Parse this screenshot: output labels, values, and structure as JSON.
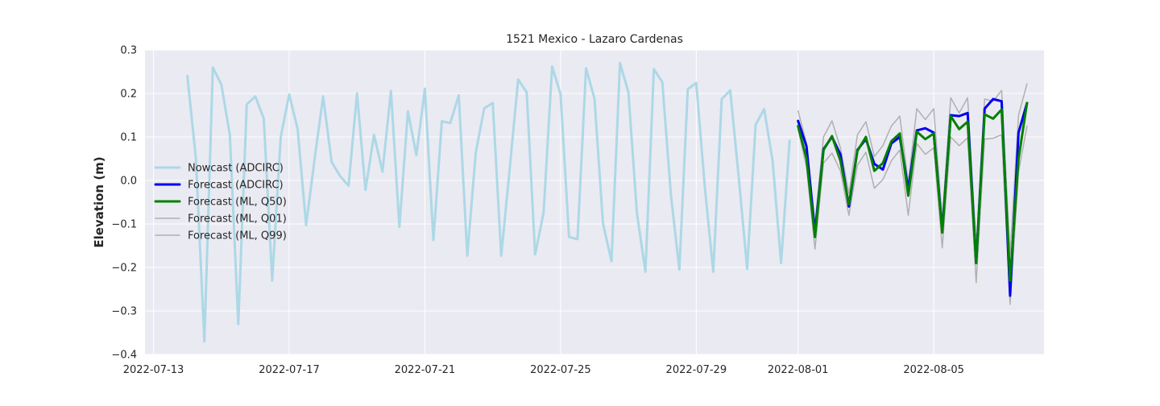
{
  "chart_data": {
    "type": "line",
    "title": "1521 Mexico - Lazaro Cardenas",
    "xlabel": "",
    "ylabel": "Elevation (m)",
    "xlim": [
      "2022-07-12T18:00",
      "2022-08-08T06:00"
    ],
    "ylim": [
      -0.4,
      0.3
    ],
    "x_ticks": [
      "2022-07-13",
      "2022-07-17",
      "2022-07-21",
      "2022-07-25",
      "2022-07-29",
      "2022-08-01",
      "2022-08-05"
    ],
    "y_ticks": [
      -0.4,
      -0.3,
      -0.2,
      -0.1,
      0.0,
      0.1,
      0.2,
      0.3
    ],
    "y_tick_labels": [
      "−0.4",
      "−0.3",
      "−0.2",
      "−0.1",
      "0.0",
      "0.1",
      "0.2",
      "0.3"
    ],
    "grid": true,
    "legend_position": "center-left",
    "series": [
      {
        "name": "Nowcast (ADCIRC)",
        "color": "#add8e6",
        "width": 3,
        "x": [
          "2022-07-14T00:00",
          "2022-07-14T06:00",
          "2022-07-14T12:00",
          "2022-07-14T18:00",
          "2022-07-15T00:00",
          "2022-07-15T06:00",
          "2022-07-15T12:00",
          "2022-07-15T18:00",
          "2022-07-16T00:00",
          "2022-07-16T06:00",
          "2022-07-16T12:00",
          "2022-07-16T18:00",
          "2022-07-17T00:00",
          "2022-07-17T06:00",
          "2022-07-17T12:00",
          "2022-07-17T18:00",
          "2022-07-18T00:00",
          "2022-07-18T06:00",
          "2022-07-18T12:00",
          "2022-07-18T18:00",
          "2022-07-19T00:00",
          "2022-07-19T06:00",
          "2022-07-19T12:00",
          "2022-07-19T18:00",
          "2022-07-20T00:00",
          "2022-07-20T06:00",
          "2022-07-20T12:00",
          "2022-07-20T18:00",
          "2022-07-21T00:00",
          "2022-07-21T06:00",
          "2022-07-21T12:00",
          "2022-07-21T18:00",
          "2022-07-22T00:00",
          "2022-07-22T06:00",
          "2022-07-22T12:00",
          "2022-07-22T18:00",
          "2022-07-23T00:00",
          "2022-07-23T06:00",
          "2022-07-23T12:00",
          "2022-07-23T18:00",
          "2022-07-24T00:00",
          "2022-07-24T06:00",
          "2022-07-24T12:00",
          "2022-07-24T18:00",
          "2022-07-25T00:00",
          "2022-07-25T06:00",
          "2022-07-25T12:00",
          "2022-07-25T18:00",
          "2022-07-26T00:00",
          "2022-07-26T06:00",
          "2022-07-26T12:00",
          "2022-07-26T18:00",
          "2022-07-27T00:00",
          "2022-07-27T06:00",
          "2022-07-27T12:00",
          "2022-07-27T18:00",
          "2022-07-28T00:00",
          "2022-07-28T06:00",
          "2022-07-28T12:00",
          "2022-07-28T18:00",
          "2022-07-29T00:00",
          "2022-07-29T06:00",
          "2022-07-29T12:00",
          "2022-07-29T18:00",
          "2022-07-30T00:00",
          "2022-07-30T06:00",
          "2022-07-30T12:00",
          "2022-07-30T18:00",
          "2022-07-31T00:00",
          "2022-07-31T06:00",
          "2022-07-31T12:00",
          "2022-07-31T18:00"
        ],
        "y": [
          0.24,
          0.05,
          -0.37,
          0.26,
          0.22,
          0.105,
          -0.33,
          0.175,
          0.193,
          0.143,
          -0.23,
          0.1,
          0.198,
          0.118,
          -0.103,
          0.05,
          0.193,
          0.043,
          0.01,
          -0.012,
          0.2,
          -0.022,
          0.105,
          0.02,
          0.206,
          -0.107,
          0.159,
          0.058,
          0.211,
          -0.137,
          0.136,
          0.132,
          0.196,
          -0.173,
          0.064,
          0.166,
          0.178,
          -0.173,
          0.026,
          0.232,
          0.203,
          -0.17,
          -0.074,
          0.262,
          0.198,
          -0.13,
          -0.135,
          0.258,
          0.188,
          -0.098,
          -0.186,
          0.27,
          0.203,
          -0.074,
          -0.21,
          0.256,
          0.226,
          -0.032,
          -0.205,
          0.21,
          0.224,
          -0.014,
          -0.21,
          0.187,
          0.207,
          0.008,
          -0.203,
          0.128,
          0.164,
          0.045,
          -0.19,
          0.091
        ]
      },
      {
        "name": "Forecast (ADCIRC)",
        "color": "#0000ee",
        "width": 3,
        "x": [
          "2022-08-01T00:00",
          "2022-08-01T06:00",
          "2022-08-01T12:00",
          "2022-08-01T18:00",
          "2022-08-02T00:00",
          "2022-08-02T06:00",
          "2022-08-02T12:00",
          "2022-08-02T18:00",
          "2022-08-03T00:00",
          "2022-08-03T06:00",
          "2022-08-03T12:00",
          "2022-08-03T18:00",
          "2022-08-04T00:00",
          "2022-08-04T06:00",
          "2022-08-04T12:00",
          "2022-08-04T18:00",
          "2022-08-05T00:00",
          "2022-08-05T06:00",
          "2022-08-05T12:00",
          "2022-08-05T18:00",
          "2022-08-06T00:00",
          "2022-08-06T06:00",
          "2022-08-06T12:00",
          "2022-08-06T18:00",
          "2022-08-07T00:00",
          "2022-08-07T06:00",
          "2022-08-07T12:00",
          "2022-08-07T18:00"
        ],
        "y": [
          0.137,
          0.078,
          -0.12,
          0.072,
          0.1,
          0.06,
          -0.06,
          0.07,
          0.095,
          0.038,
          0.025,
          0.085,
          0.1,
          -0.02,
          0.115,
          0.12,
          0.11,
          -0.115,
          0.15,
          0.148,
          0.155,
          -0.19,
          0.165,
          0.187,
          0.182,
          -0.265,
          0.11,
          0.178
        ]
      },
      {
        "name": "Forecast (ML, Q50)",
        "color": "#008000",
        "width": 3,
        "x": [
          "2022-08-01T00:00",
          "2022-08-01T06:00",
          "2022-08-01T12:00",
          "2022-08-01T18:00",
          "2022-08-02T00:00",
          "2022-08-02T06:00",
          "2022-08-02T12:00",
          "2022-08-02T18:00",
          "2022-08-03T00:00",
          "2022-08-03T06:00",
          "2022-08-03T12:00",
          "2022-08-03T18:00",
          "2022-08-04T00:00",
          "2022-08-04T06:00",
          "2022-08-04T12:00",
          "2022-08-04T18:00",
          "2022-08-05T00:00",
          "2022-08-05T06:00",
          "2022-08-05T12:00",
          "2022-08-05T18:00",
          "2022-08-06T00:00",
          "2022-08-06T06:00",
          "2022-08-06T12:00",
          "2022-08-06T18:00",
          "2022-08-07T00:00",
          "2022-08-07T06:00",
          "2022-08-07T12:00",
          "2022-08-07T18:00"
        ],
        "y": [
          0.125,
          0.05,
          -0.13,
          0.07,
          0.102,
          0.045,
          -0.055,
          0.068,
          0.1,
          0.022,
          0.04,
          0.09,
          0.108,
          -0.035,
          0.112,
          0.095,
          0.108,
          -0.12,
          0.148,
          0.118,
          0.135,
          -0.19,
          0.152,
          0.142,
          0.163,
          -0.23,
          0.05,
          0.178
        ]
      },
      {
        "name": "Forecast (ML, Q01)",
        "color": "#b0b0b0",
        "width": 1.5,
        "x": [
          "2022-08-01T00:00",
          "2022-08-01T06:00",
          "2022-08-01T12:00",
          "2022-08-01T18:00",
          "2022-08-02T00:00",
          "2022-08-02T06:00",
          "2022-08-02T12:00",
          "2022-08-02T18:00",
          "2022-08-03T00:00",
          "2022-08-03T06:00",
          "2022-08-03T12:00",
          "2022-08-03T18:00",
          "2022-08-04T00:00",
          "2022-08-04T06:00",
          "2022-08-04T12:00",
          "2022-08-04T18:00",
          "2022-08-05T00:00",
          "2022-08-05T06:00",
          "2022-08-05T12:00",
          "2022-08-05T18:00",
          "2022-08-06T00:00",
          "2022-08-06T06:00",
          "2022-08-06T12:00",
          "2022-08-06T18:00",
          "2022-08-07T00:00",
          "2022-08-07T06:00",
          "2022-08-07T12:00",
          "2022-08-07T18:00"
        ],
        "y": [
          0.118,
          0.03,
          -0.158,
          0.04,
          0.063,
          0.022,
          -0.08,
          0.035,
          0.065,
          -0.018,
          0.002,
          0.045,
          0.07,
          -0.08,
          0.085,
          0.06,
          0.075,
          -0.155,
          0.1,
          0.08,
          0.098,
          -0.235,
          0.095,
          0.097,
          0.105,
          -0.285,
          0.02,
          0.125
        ]
      },
      {
        "name": "Forecast (ML, Q99)",
        "color": "#b0b0b0",
        "width": 1.5,
        "x": [
          "2022-08-01T00:00",
          "2022-08-01T06:00",
          "2022-08-01T12:00",
          "2022-08-01T18:00",
          "2022-08-02T00:00",
          "2022-08-02T06:00",
          "2022-08-02T12:00",
          "2022-08-02T18:00",
          "2022-08-03T00:00",
          "2022-08-03T06:00",
          "2022-08-03T12:00",
          "2022-08-03T18:00",
          "2022-08-04T00:00",
          "2022-08-04T06:00",
          "2022-08-04T12:00",
          "2022-08-04T18:00",
          "2022-08-05T00:00",
          "2022-08-05T06:00",
          "2022-08-05T12:00",
          "2022-08-05T18:00",
          "2022-08-06T00:00",
          "2022-08-06T06:00",
          "2022-08-06T12:00",
          "2022-08-06T18:00",
          "2022-08-07T00:00",
          "2022-08-07T06:00",
          "2022-08-07T12:00",
          "2022-08-07T18:00"
        ],
        "y": [
          0.16,
          0.085,
          -0.1,
          0.1,
          0.137,
          0.075,
          -0.03,
          0.105,
          0.135,
          0.055,
          0.08,
          0.125,
          0.148,
          -0.005,
          0.165,
          0.14,
          0.165,
          -0.09,
          0.19,
          0.155,
          0.19,
          -0.15,
          0.187,
          0.182,
          0.207,
          -0.17,
          0.15,
          0.222
        ]
      }
    ]
  }
}
